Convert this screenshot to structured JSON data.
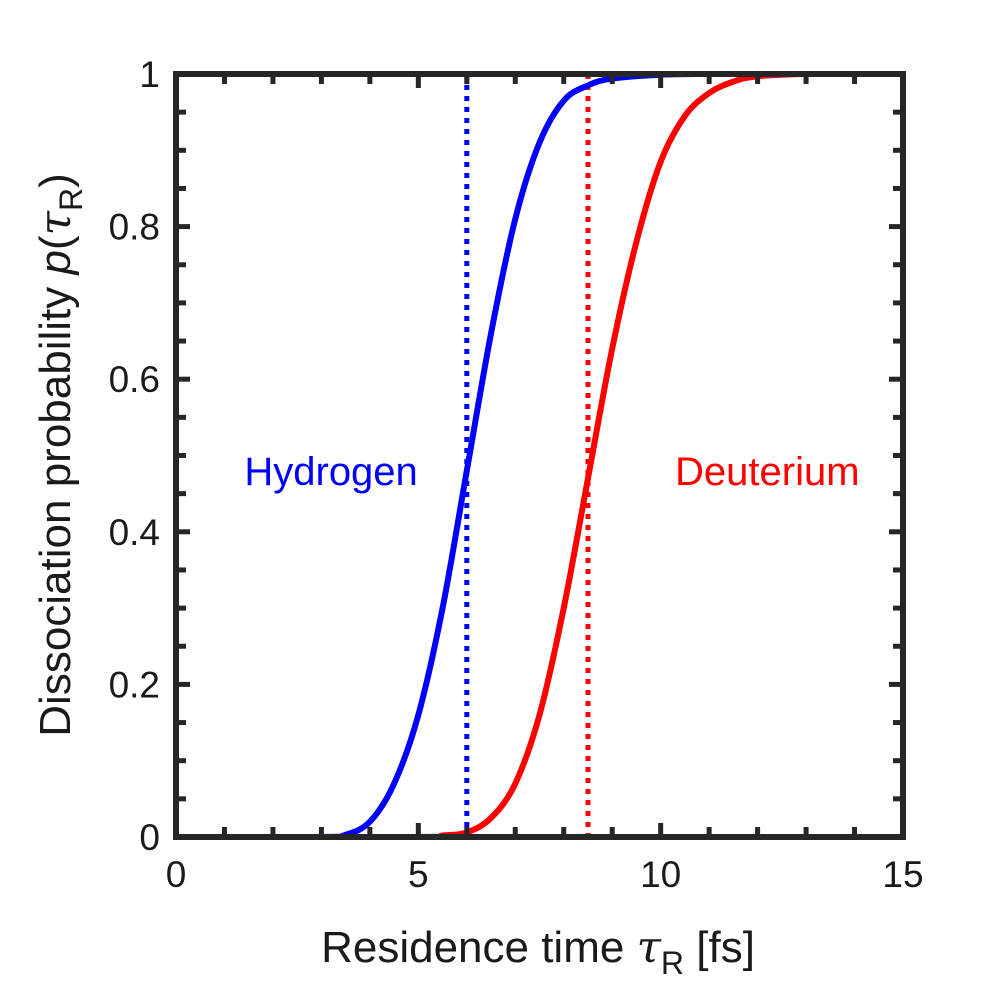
{
  "chart_data": {
    "type": "line",
    "xlabel": {
      "main": "Residence time ",
      "symbol": "τ",
      "sub": "R",
      "unit": " [fs]"
    },
    "ylabel": {
      "main": "Dissociation probability  ",
      "func": "p",
      "open": "(",
      "symbol": "τ",
      "sub": "R",
      "close": ")"
    },
    "xlim": [
      0,
      15
    ],
    "ylim": [
      0,
      1
    ],
    "xticks": [
      0,
      5,
      10,
      15
    ],
    "xtick_labels": [
      "0",
      "5",
      "10",
      "15"
    ],
    "yticks": [
      0,
      0.2,
      0.4,
      0.6,
      0.8,
      1
    ],
    "ytick_labels": [
      "0",
      "0.2",
      "0.4",
      "0.6",
      "0.8",
      "1"
    ],
    "grid": false,
    "series": [
      {
        "name": "Hydrogen",
        "color": "#0000ff",
        "x": [
          0,
          3,
          3.5,
          4,
          4.5,
          5,
          5.5,
          6,
          6.5,
          7,
          7.5,
          8,
          8.5,
          9,
          10,
          11,
          12,
          15
        ],
        "y": [
          0,
          0,
          0.003,
          0.02,
          0.07,
          0.16,
          0.3,
          0.48,
          0.66,
          0.81,
          0.91,
          0.965,
          0.985,
          0.994,
          0.999,
          1,
          1,
          1
        ]
      },
      {
        "name": "Deuterium",
        "color": "#ff0000",
        "x": [
          0,
          5,
          5.5,
          6,
          6.5,
          7,
          7.5,
          8,
          8.5,
          9,
          9.5,
          10,
          10.5,
          11,
          11.5,
          12,
          13,
          15
        ],
        "y": [
          0,
          0,
          0.002,
          0.006,
          0.025,
          0.07,
          0.16,
          0.3,
          0.47,
          0.64,
          0.78,
          0.885,
          0.945,
          0.975,
          0.99,
          0.997,
          1,
          1
        ]
      }
    ],
    "vlines": [
      {
        "x": 6.0,
        "color": "#0000ff",
        "style": "dotted"
      },
      {
        "x": 8.5,
        "color": "#ff0000",
        "style": "dotted"
      }
    ],
    "annotations": [
      {
        "text": "Hydrogen",
        "x": 3.2,
        "y": 0.48,
        "color": "#0000ff"
      },
      {
        "text": "Deuterium",
        "x": 12.2,
        "y": 0.48,
        "color": "#ff0000"
      }
    ]
  }
}
